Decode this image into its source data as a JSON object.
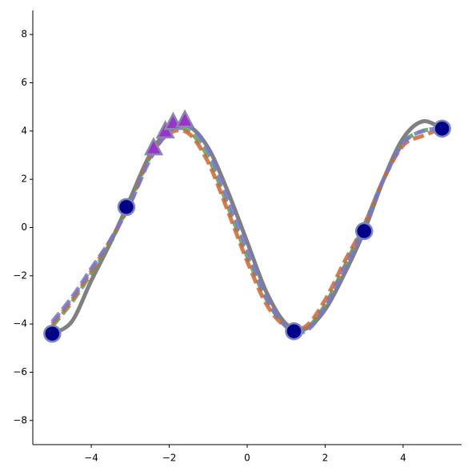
{
  "chart_data": {
    "type": "line",
    "x": [
      -5,
      -4.5,
      -4,
      -3.5,
      -3,
      -2.5,
      -2,
      -1.5,
      -1,
      -0.5,
      0,
      0.5,
      1,
      1.5,
      2,
      2.5,
      3,
      3.5,
      4,
      4.5,
      5
    ],
    "series": [
      {
        "color": "#808080",
        "dashed": false,
        "values": [
          -4.4,
          -3.9,
          -2.2,
          -0.6,
          1.2,
          3.0,
          4.1,
          4.2,
          3.3,
          1.5,
          -0.6,
          -2.7,
          -4.0,
          -4.2,
          -3.4,
          -1.9,
          -0.15,
          2.0,
          3.7,
          4.4,
          4.1
        ]
      },
      {
        "color": "#5aa05a",
        "dashed": true,
        "values": [
          -4.1,
          -3.1,
          -1.9,
          -0.6,
          1.1,
          2.9,
          4.0,
          4.0,
          2.9,
          0.9,
          -1.2,
          -3.0,
          -4.1,
          -4.2,
          -3.2,
          -1.6,
          0.1,
          2.0,
          3.5,
          4.0,
          4.1
        ]
      },
      {
        "color": "#cc6633",
        "dashed": true,
        "values": [
          -4.0,
          -3.0,
          -1.8,
          -0.5,
          1.0,
          2.9,
          3.9,
          3.9,
          2.7,
          0.7,
          -1.4,
          -3.2,
          -4.1,
          -4.1,
          -3.0,
          -1.4,
          0.1,
          2.0,
          3.4,
          3.8,
          4.1
        ]
      },
      {
        "color": "#7777cc",
        "dashed": true,
        "values": [
          -3.9,
          -2.9,
          -1.7,
          -0.5,
          1.0,
          2.8,
          4.0,
          4.2,
          3.2,
          1.2,
          -0.9,
          -2.9,
          -4.1,
          -4.3,
          -3.3,
          -1.7,
          0.0,
          2.0,
          3.5,
          4.0,
          4.1
        ]
      }
    ],
    "points": [
      {
        "marker": "circle",
        "color": "#00008b",
        "x": [
          -5,
          -3.1,
          1.2,
          3,
          5
        ],
        "values": [
          -4.4,
          0.85,
          -4.3,
          -0.15,
          4.1
        ]
      },
      {
        "marker": "triangle",
        "color": "#9933cc",
        "x": [
          -2.4,
          -2.1,
          -1.9,
          -1.6
        ],
        "values": [
          3.3,
          4.0,
          4.35,
          4.45
        ]
      }
    ],
    "xlim": [
      -5.5,
      5.5
    ],
    "ylim": [
      -9,
      9
    ],
    "xticks": [
      {
        "value": -4,
        "label": "−4"
      },
      {
        "value": -2,
        "label": "−2"
      },
      0,
      2,
      4
    ],
    "yticks": [
      {
        "value": -8,
        "label": "−8"
      },
      {
        "value": -6,
        "label": "−6"
      },
      {
        "value": -4,
        "label": "−4"
      },
      {
        "value": -2,
        "label": "−2"
      },
      0,
      2,
      4,
      6,
      8
    ]
  }
}
